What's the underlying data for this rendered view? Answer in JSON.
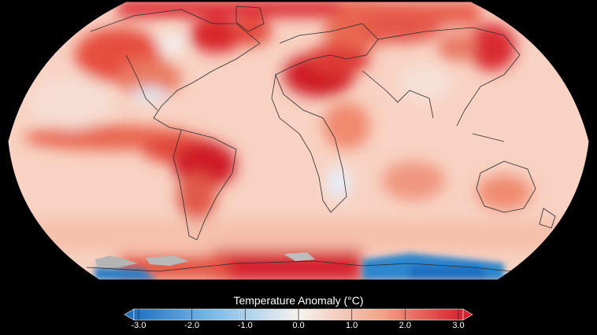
{
  "legend": {
    "title": "Temperature Anomaly (°C)",
    "ticks": [
      "-3.0",
      "-2.0",
      "-1.0",
      "0.0",
      "1.0",
      "2.0",
      "3.0"
    ],
    "min": -3.0,
    "max": 3.0,
    "colors": {
      "cold_end": "#1f6fc0",
      "cold_mid": "#7fbde8",
      "neutral": "#f7f3f0",
      "warm_mid": "#f2a488",
      "warm_end": "#d4212e"
    }
  },
  "map": {
    "projection": "robinson",
    "ocean_color": "#f8d6c8",
    "land_outline_color": "#333333",
    "no_data_color": "#b5b5b5"
  }
}
